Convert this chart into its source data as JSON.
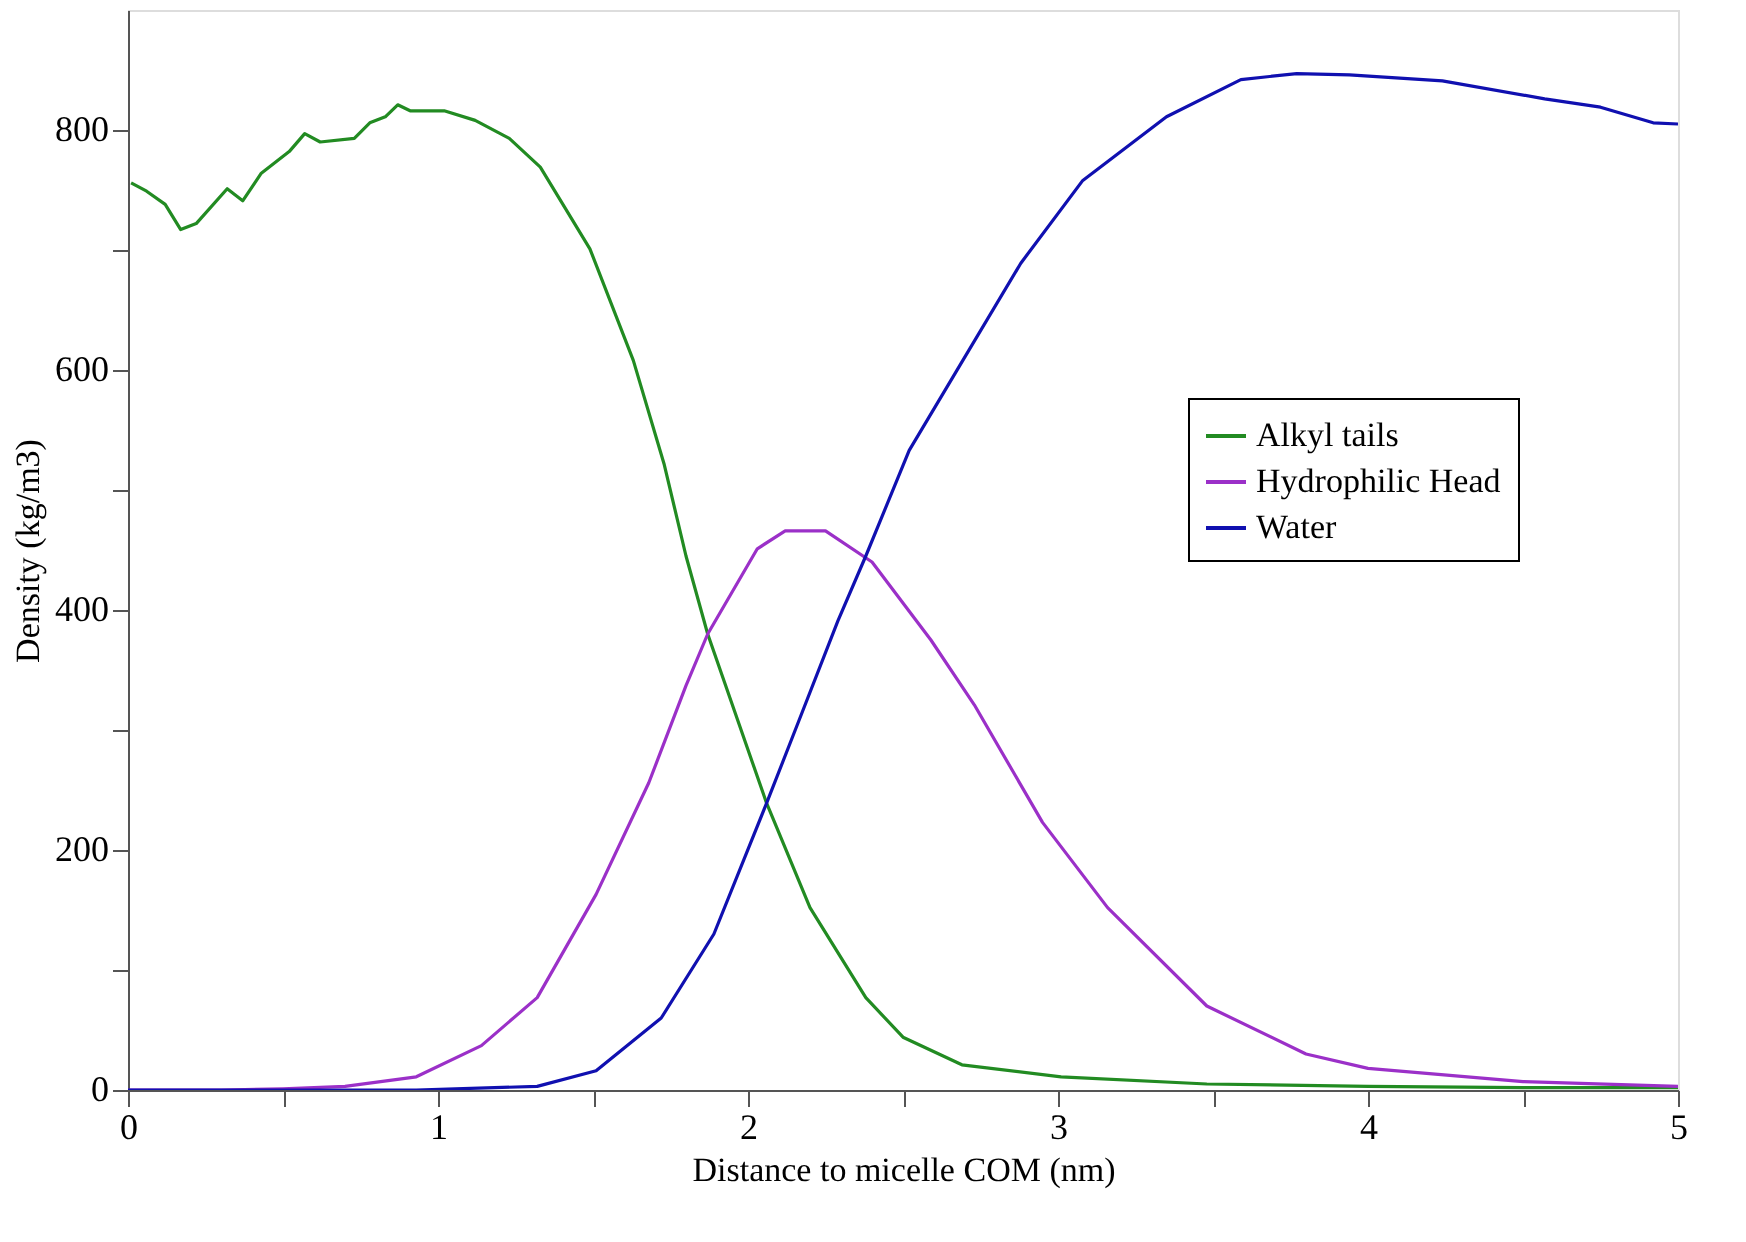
{
  "chart_data": {
    "type": "line",
    "xlabel": "Distance to micelle COM (nm)",
    "ylabel": "Density (kg/m3)",
    "xlim": [
      0,
      5
    ],
    "ylim": [
      0,
      900
    ],
    "xticks": [
      0,
      {
        "value": 0.5,
        "label": null
      },
      1,
      {
        "value": 1.5,
        "label": null
      },
      2,
      {
        "value": 2.5,
        "label": null
      },
      3,
      {
        "value": 3.5,
        "label": null
      },
      4,
      {
        "value": 4.5,
        "label": null
      },
      5
    ],
    "yticks": [
      0,
      {
        "value": 100,
        "label": null
      },
      200,
      {
        "value": 300,
        "label": null
      },
      400,
      {
        "value": 500,
        "label": null
      },
      600,
      {
        "value": 700,
        "label": null
      },
      800
    ],
    "grid": false,
    "legend": "right",
    "marker": "none",
    "line_style": "solid",
    "series": [
      {
        "name": "Alkyl tails",
        "color": "#228b22",
        "x": [
          0.01,
          0.06,
          0.12,
          0.17,
          0.22,
          0.32,
          0.37,
          0.43,
          0.52,
          0.57,
          0.62,
          0.73,
          0.78,
          0.83,
          0.87,
          0.91,
          1.02,
          1.12,
          1.23,
          1.33,
          1.49,
          1.63,
          1.73,
          1.8,
          1.87,
          2.06,
          2.2,
          2.38,
          2.5,
          2.69,
          3.01,
          3.48,
          4.0,
          4.5,
          5.0
        ],
        "values": [
          756,
          749,
          738,
          717,
          722,
          751,
          741,
          764,
          782,
          797,
          790,
          793,
          806,
          811,
          821,
          816,
          816,
          808,
          793,
          769,
          701,
          608,
          521,
          445,
          380,
          239,
          152,
          77,
          44,
          21,
          11,
          5,
          3,
          2,
          2
        ]
      },
      {
        "name": "Hydrophilic Head",
        "color": "#9b30c8",
        "x": [
          0,
          0.3,
          0.5,
          0.7,
          0.93,
          1.14,
          1.32,
          1.51,
          1.68,
          1.8,
          1.87,
          2.03,
          2.12,
          2.25,
          2.4,
          2.59,
          2.73,
          2.95,
          3.16,
          3.48,
          3.8,
          4.0,
          4.5,
          5.0
        ],
        "values": [
          0,
          0,
          1,
          3,
          11,
          37,
          77,
          163,
          256,
          337,
          380,
          451,
          466,
          466,
          440,
          375,
          321,
          223,
          152,
          70,
          30,
          18,
          7,
          3
        ]
      },
      {
        "name": "Water",
        "color": "#1010b0",
        "x": [
          0,
          0.5,
          0.93,
          1.32,
          1.51,
          1.72,
          1.89,
          2.06,
          2.16,
          2.29,
          2.38,
          2.52,
          2.67,
          2.88,
          3.08,
          3.35,
          3.59,
          3.77,
          3.94,
          4.24,
          4.57,
          4.75,
          4.92,
          5.0
        ],
        "values": [
          0,
          0,
          0,
          3,
          16,
          60,
          130,
          239,
          305,
          391,
          445,
          533,
          598,
          689,
          758,
          811,
          842,
          847,
          846,
          841,
          826,
          819,
          806,
          805
        ]
      }
    ]
  }
}
